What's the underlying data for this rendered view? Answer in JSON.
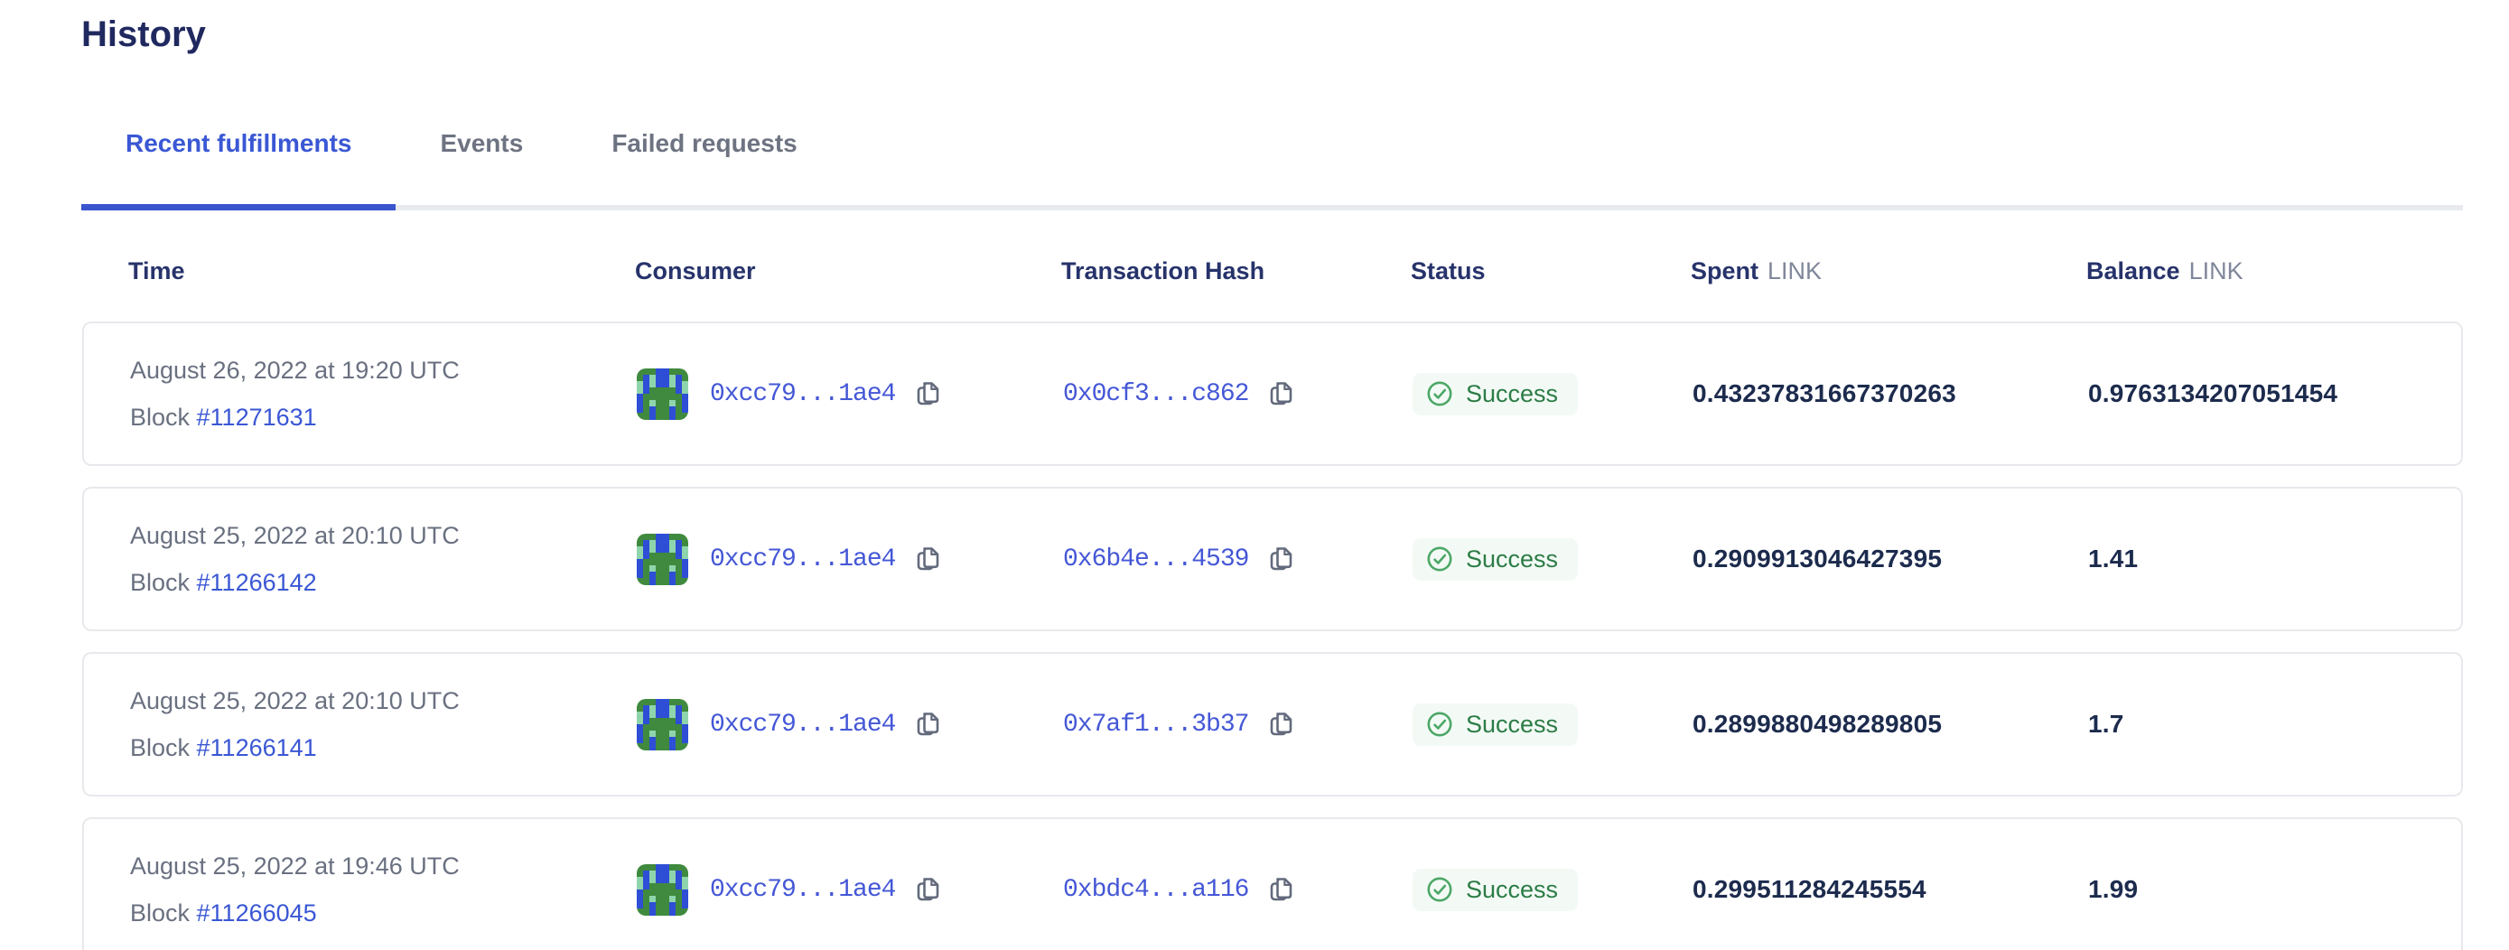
{
  "page": {
    "title": "History"
  },
  "tabs": [
    {
      "label": "Recent fulfillments",
      "active": true
    },
    {
      "label": "Events",
      "active": false
    },
    {
      "label": "Failed requests",
      "active": false
    }
  ],
  "table": {
    "headers": {
      "time": "Time",
      "consumer": "Consumer",
      "tx": "Transaction Hash",
      "status": "Status",
      "spent": "Spent",
      "spent_unit": "LINK",
      "balance": "Balance",
      "balance_unit": "LINK"
    },
    "block_prefix": "Block ",
    "rows": [
      {
        "time": "August 26, 2022 at 19:20 UTC",
        "block": "#11271631",
        "consumer": "0xcc79...1ae4",
        "tx": "0x0cf3...c862",
        "status": "Success",
        "spent": "0.43237831667370263",
        "balance": "0.9763134207051454"
      },
      {
        "time": "August 25, 2022 at 20:10 UTC",
        "block": "#11266142",
        "consumer": "0xcc79...1ae4",
        "tx": "0x6b4e...4539",
        "status": "Success",
        "spent": "0.2909913046427395",
        "balance": "1.41"
      },
      {
        "time": "August 25, 2022 at 20:10 UTC",
        "block": "#11266141",
        "consumer": "0xcc79...1ae4",
        "tx": "0x7af1...3b37",
        "status": "Success",
        "spent": "0.2899880498289805",
        "balance": "1.7"
      },
      {
        "time": "August 25, 2022 at 19:46 UTC",
        "block": "#11266045",
        "consumer": "0xcc79...1ae4",
        "tx": "0xbdc4...a116",
        "status": "Success",
        "spent": "0.299511284245554",
        "balance": "1.99"
      }
    ]
  },
  "icons": {
    "copy": "copy-icon",
    "success": "check-circle-icon",
    "avatar": "blockies-avatar"
  },
  "colors": {
    "accent_blue": "#3a57d4",
    "title_navy": "#20295f",
    "header_navy": "#27336b",
    "text_gray": "#697080",
    "unit_gray": "#81879b",
    "success_green": "#2c7c46",
    "success_icon": "#4ca767",
    "success_bg": "#f3faf5",
    "card_border": "#e8e9ed",
    "value_navy": "#1c2b4d"
  },
  "avatar": {
    "palette": {
      "G": "#3f8a3e",
      "B": "#2e4ed6",
      "S": "#8fd5ac"
    },
    "grid": [
      "GGGBBGGG",
      "GBSBBSBG",
      "SBSBBSBS",
      "SBGGGGBS",
      "BGGGGGGB",
      "BGSGGSGB",
      "BGBGGBGB",
      "GGBGGBGG"
    ]
  }
}
